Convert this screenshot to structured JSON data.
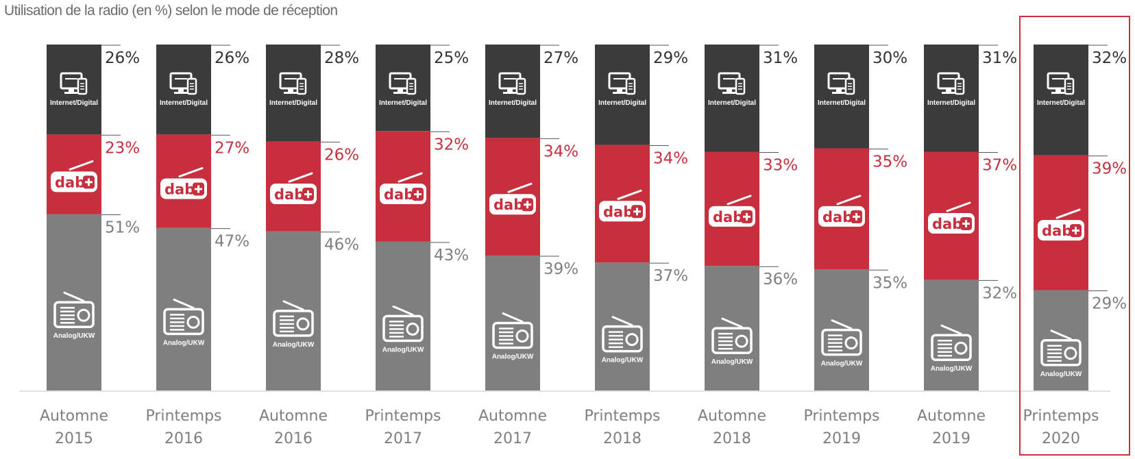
{
  "chart_data": {
    "type": "bar",
    "stacked": true,
    "title": "Utilisation de la radio (en %) selon le mode de réception",
    "xlabel": "",
    "ylabel": "",
    "ylim": [
      0,
      100
    ],
    "legend": "none",
    "grid": false,
    "highlighted_category": 9,
    "categories": [
      [
        "Automne",
        "2015"
      ],
      [
        "Printemps",
        "2016"
      ],
      [
        "Automne",
        "2016"
      ],
      [
        "Printemps",
        "2017"
      ],
      [
        "Automne",
        "2017"
      ],
      [
        "Printemps",
        "2018"
      ],
      [
        "Automne",
        "2018"
      ],
      [
        "Printemps",
        "2019"
      ],
      [
        "Automne",
        "2019"
      ],
      [
        "Printemps",
        "2020"
      ]
    ],
    "series": [
      {
        "segment_label": "Analog/UKW",
        "icon": "analog-radio-icon",
        "color": "#7f7f7f",
        "label_color": "#7f7f7f",
        "values": [
          51,
          47,
          46,
          43,
          39,
          37,
          36,
          35,
          32,
          29
        ]
      },
      {
        "segment_label": "dab+",
        "icon": "dab-radio-icon",
        "color": "#c82f3e",
        "label_color": "#c82f3e",
        "values": [
          23,
          27,
          26,
          32,
          34,
          34,
          33,
          35,
          37,
          39
        ]
      },
      {
        "segment_label": "Internet/Digital",
        "icon": "computer-devices-icon",
        "color": "#3b3b3b",
        "label_color": "#333333",
        "values": [
          26,
          26,
          28,
          25,
          27,
          29,
          31,
          30,
          31,
          32
        ]
      }
    ]
  }
}
